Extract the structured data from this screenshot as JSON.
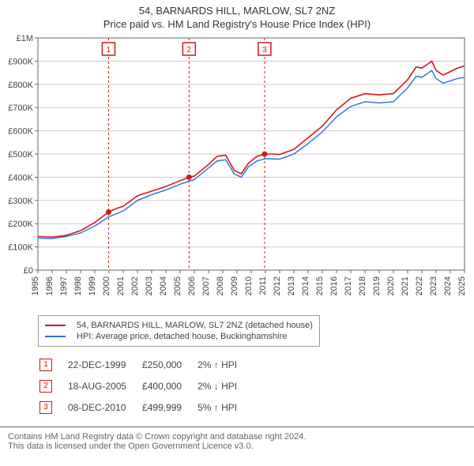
{
  "title_line1": "54, BARNARDS HILL, MARLOW, SL7 2NZ",
  "title_line2": "Price paid vs. HM Land Registry's House Price Index (HPI)",
  "chart": {
    "type": "line",
    "background_color": "#ffffff",
    "plot_border_color": "#666666",
    "grid_color": "#cccccc",
    "axis_text_color": "#444444",
    "axis_fontsize": 11,
    "x": {
      "min": 1995,
      "max": 2025,
      "tick_step": 1,
      "tick_rotate": -90
    },
    "y": {
      "min": 0,
      "max": 1000000,
      "tick_step": 100000,
      "tick_labels": [
        "£0",
        "£100K",
        "£200K",
        "£300K",
        "£400K",
        "£500K",
        "£600K",
        "£700K",
        "£800K",
        "£900K",
        "£1M"
      ]
    },
    "series": [
      {
        "name": "54, BARNARDS HILL, MARLOW, SL7 2NZ (detached house)",
        "color": "#d11919",
        "width": 1.6,
        "points": [
          [
            1995.0,
            145000
          ],
          [
            1996.0,
            142000
          ],
          [
            1997.0,
            150000
          ],
          [
            1998.0,
            170000
          ],
          [
            1999.0,
            205000
          ],
          [
            1999.97,
            250000
          ],
          [
            2000.5,
            265000
          ],
          [
            2001.0,
            275000
          ],
          [
            2002.0,
            320000
          ],
          [
            2003.0,
            340000
          ],
          [
            2004.0,
            360000
          ],
          [
            2005.0,
            385000
          ],
          [
            2005.63,
            400000
          ],
          [
            2006.0,
            405000
          ],
          [
            2007.0,
            455000
          ],
          [
            2007.6,
            490000
          ],
          [
            2008.2,
            495000
          ],
          [
            2008.8,
            430000
          ],
          [
            2009.3,
            415000
          ],
          [
            2009.8,
            460000
          ],
          [
            2010.4,
            490000
          ],
          [
            2010.94,
            499999
          ],
          [
            2011.5,
            500000
          ],
          [
            2012.0,
            498000
          ],
          [
            2013.0,
            520000
          ],
          [
            2014.0,
            570000
          ],
          [
            2015.0,
            620000
          ],
          [
            2016.0,
            690000
          ],
          [
            2017.0,
            740000
          ],
          [
            2018.0,
            760000
          ],
          [
            2019.0,
            755000
          ],
          [
            2020.0,
            760000
          ],
          [
            2021.0,
            820000
          ],
          [
            2021.6,
            875000
          ],
          [
            2022.0,
            870000
          ],
          [
            2022.7,
            900000
          ],
          [
            2023.0,
            860000
          ],
          [
            2023.5,
            840000
          ],
          [
            2024.0,
            855000
          ],
          [
            2024.5,
            870000
          ],
          [
            2025.0,
            880000
          ]
        ]
      },
      {
        "name": "HPI: Average price, detached house, Buckinghamshire",
        "color": "#2a6fd6",
        "width": 1.4,
        "points": [
          [
            1995.0,
            138000
          ],
          [
            1996.0,
            136000
          ],
          [
            1997.0,
            145000
          ],
          [
            1998.0,
            160000
          ],
          [
            1999.0,
            190000
          ],
          [
            2000.0,
            230000
          ],
          [
            2001.0,
            255000
          ],
          [
            2002.0,
            300000
          ],
          [
            2003.0,
            325000
          ],
          [
            2004.0,
            345000
          ],
          [
            2005.0,
            370000
          ],
          [
            2006.0,
            390000
          ],
          [
            2007.0,
            440000
          ],
          [
            2007.6,
            470000
          ],
          [
            2008.2,
            475000
          ],
          [
            2008.8,
            415000
          ],
          [
            2009.3,
            400000
          ],
          [
            2009.8,
            445000
          ],
          [
            2010.4,
            470000
          ],
          [
            2011.0,
            480000
          ],
          [
            2012.0,
            478000
          ],
          [
            2013.0,
            500000
          ],
          [
            2014.0,
            545000
          ],
          [
            2015.0,
            595000
          ],
          [
            2016.0,
            660000
          ],
          [
            2017.0,
            705000
          ],
          [
            2018.0,
            725000
          ],
          [
            2019.0,
            720000
          ],
          [
            2020.0,
            725000
          ],
          [
            2021.0,
            785000
          ],
          [
            2021.6,
            835000
          ],
          [
            2022.0,
            830000
          ],
          [
            2022.7,
            860000
          ],
          [
            2023.0,
            825000
          ],
          [
            2023.5,
            805000
          ],
          [
            2024.0,
            815000
          ],
          [
            2024.5,
            825000
          ],
          [
            2025.0,
            830000
          ]
        ]
      }
    ],
    "event_markers": [
      {
        "n": "1",
        "x": 1999.97,
        "y": 250000,
        "line_color": "#d11919",
        "dash": "3,3",
        "badge_border": "#d11919",
        "badge_text": "#d11919"
      },
      {
        "n": "2",
        "x": 2005.63,
        "y": 400000,
        "line_color": "#d11919",
        "dash": "3,3",
        "badge_border": "#d11919",
        "badge_text": "#d11919"
      },
      {
        "n": "3",
        "x": 2010.94,
        "y": 499999,
        "line_color": "#d11919",
        "dash": "3,3",
        "badge_border": "#d11919",
        "badge_text": "#d11919"
      }
    ],
    "marker_point_fill": "#d11919",
    "marker_point_radius": 3.5
  },
  "legend": {
    "border_color": "#999999",
    "items": [
      {
        "color": "#d11919",
        "label": "54, BARNARDS HILL, MARLOW, SL7 2NZ (detached house)"
      },
      {
        "color": "#2a6fd6",
        "label": "HPI: Average price, detached house, Buckinghamshire"
      }
    ]
  },
  "marker_rows": [
    {
      "n": "1",
      "date": "22-DEC-1999",
      "price": "£250,000",
      "delta": "2% ↑ HPI"
    },
    {
      "n": "2",
      "date": "18-AUG-2005",
      "price": "£400,000",
      "delta": "2% ↓ HPI"
    },
    {
      "n": "3",
      "date": "08-DEC-2010",
      "price": "£499,999",
      "delta": "5% ↑ HPI"
    }
  ],
  "attribution": {
    "line1": "Contains HM Land Registry data © Crown copyright and database right 2024.",
    "line2": "This data is licensed under the Open Government Licence v3.0."
  }
}
